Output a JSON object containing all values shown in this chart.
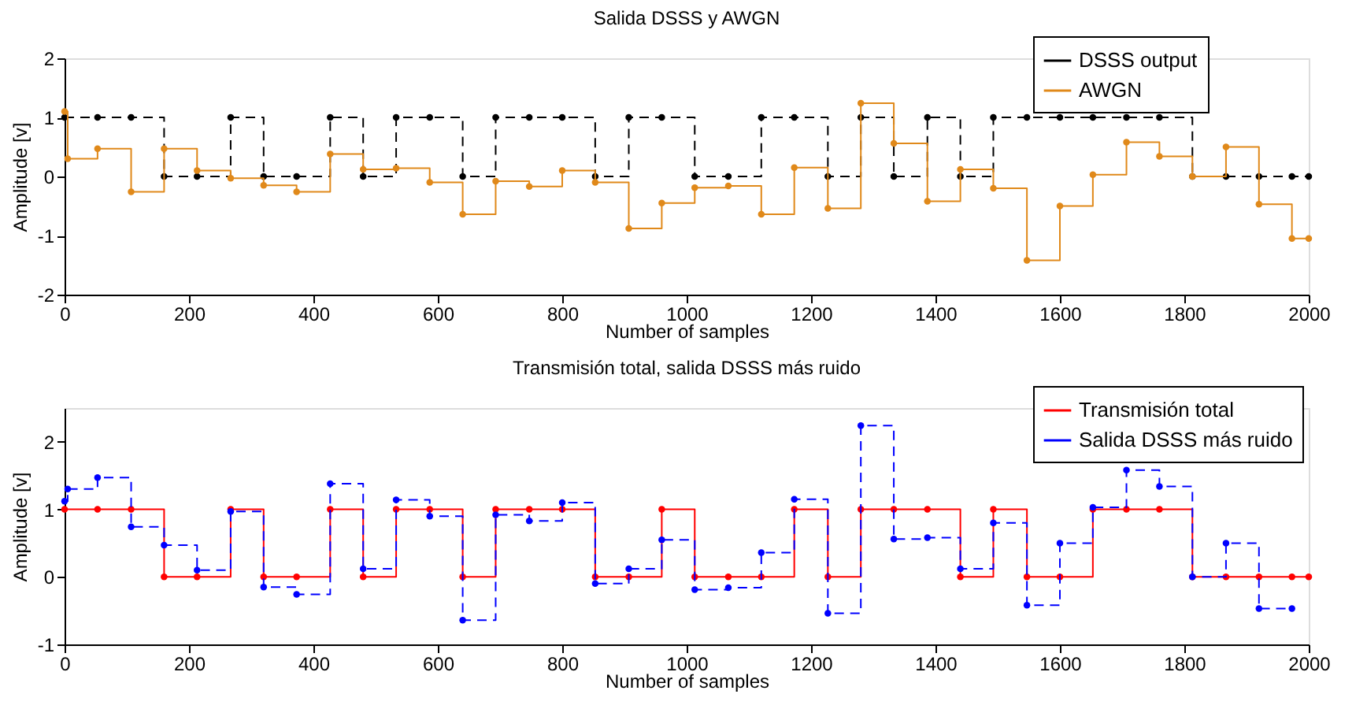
{
  "chart_data": [
    {
      "type": "step",
      "title": "Salida DSSS y AWGN",
      "xlabel": "Number of samples",
      "ylabel": "Amplitude [v]",
      "xlim": [
        0,
        2000
      ],
      "xticks": [
        0,
        200,
        400,
        600,
        800,
        1000,
        1200,
        1400,
        1600,
        1800,
        2000
      ],
      "ylim": [
        -2,
        2
      ],
      "yticks": [
        -2,
        -1,
        0,
        1,
        2
      ],
      "grid": false,
      "legend": "top right",
      "marker": "circle",
      "series": [
        {
          "name": "DSSS output",
          "color": "#000000",
          "line_style": "dashed",
          "x": [
            0,
            53,
            107,
            160,
            213,
            267,
            320,
            373,
            427,
            480,
            533,
            587,
            640,
            693,
            747,
            800,
            853,
            907,
            960,
            1013,
            1067,
            1120,
            1173,
            1227,
            1280,
            1333,
            1387,
            1440,
            1493,
            1547,
            1600,
            1653,
            1707,
            1760,
            1813,
            1867,
            1920,
            1973,
            2000
          ],
          "values": [
            1,
            1,
            1,
            0,
            0,
            1,
            0,
            0,
            1,
            0,
            1,
            1,
            0,
            1,
            1,
            1,
            0,
            1,
            1,
            0,
            0,
            1,
            1,
            0,
            1,
            0,
            1,
            0,
            1,
            1,
            1,
            1,
            1,
            1,
            0,
            0,
            0,
            0,
            0
          ]
        },
        {
          "name": "AWGN",
          "color": "#e0891a",
          "line_style": "solid",
          "x": [
            0,
            5,
            53,
            107,
            160,
            213,
            267,
            320,
            373,
            427,
            480,
            533,
            587,
            640,
            693,
            747,
            800,
            853,
            907,
            960,
            1013,
            1067,
            1120,
            1173,
            1227,
            1280,
            1333,
            1387,
            1440,
            1493,
            1547,
            1600,
            1653,
            1707,
            1760,
            1813,
            1867,
            1920,
            1973,
            2000
          ],
          "values": [
            1.1,
            0.3,
            0.47,
            -0.26,
            0.47,
            0.1,
            -0.03,
            -0.15,
            -0.26,
            0.38,
            0.12,
            0.14,
            -0.1,
            -0.64,
            -0.08,
            -0.17,
            0.1,
            -0.1,
            -0.88,
            -0.45,
            -0.19,
            -0.16,
            -0.64,
            0.15,
            -0.54,
            1.24,
            0.56,
            -0.42,
            0.12,
            -0.2,
            -1.42,
            -0.5,
            0.03,
            0.58,
            0.34,
            0.0,
            0.5,
            -0.47,
            -1.05,
            -1.05
          ]
        }
      ]
    },
    {
      "type": "step",
      "title": "Transmisión total, salida DSSS más ruido",
      "xlabel": "Number of samples",
      "ylabel": "Amplitude [v]",
      "xlim": [
        0,
        2000
      ],
      "xticks": [
        0,
        200,
        400,
        600,
        800,
        1000,
        1200,
        1400,
        1600,
        1800,
        2000
      ],
      "ylim": [
        -1,
        2.5
      ],
      "yticks": [
        -1,
        0,
        1,
        2
      ],
      "grid": false,
      "legend": "top right",
      "marker": "circle",
      "series": [
        {
          "name": "Transmisión total",
          "color": "#ff0000",
          "line_style": "solid",
          "x": [
            0,
            53,
            107,
            160,
            213,
            267,
            320,
            373,
            427,
            480,
            533,
            587,
            640,
            693,
            747,
            800,
            853,
            907,
            960,
            1013,
            1067,
            1120,
            1173,
            1227,
            1280,
            1333,
            1387,
            1440,
            1493,
            1547,
            1600,
            1653,
            1707,
            1760,
            1813,
            1867,
            1920,
            1973,
            2000
          ],
          "values": [
            1,
            1,
            1,
            0,
            0,
            1,
            0,
            0,
            1,
            0,
            1,
            1,
            0,
            1,
            1,
            1,
            0,
            0,
            1,
            0,
            0,
            0,
            1,
            0,
            1,
            1,
            1,
            0,
            1,
            0,
            0,
            1,
            1,
            1,
            0,
            0,
            0,
            0,
            0
          ]
        },
        {
          "name": "Salida DSSS más ruido",
          "color": "#0000ff",
          "line_style": "dashed",
          "x": [
            0,
            5,
            53,
            107,
            160,
            213,
            267,
            320,
            373,
            427,
            480,
            533,
            587,
            640,
            693,
            747,
            800,
            853,
            907,
            960,
            1013,
            1067,
            1120,
            1173,
            1227,
            1280,
            1333,
            1387,
            1440,
            1493,
            1547,
            1600,
            1653,
            1707,
            1760,
            1813,
            1867,
            1920,
            1973
          ],
          "values": [
            1.12,
            1.3,
            1.47,
            0.74,
            0.47,
            0.1,
            0.97,
            -0.15,
            -0.26,
            1.38,
            0.12,
            1.14,
            0.9,
            -0.64,
            0.92,
            0.83,
            1.1,
            -0.1,
            0.12,
            0.55,
            -0.19,
            -0.16,
            0.36,
            1.15,
            -0.54,
            2.24,
            0.56,
            0.58,
            0.12,
            0.8,
            -0.42,
            0.5,
            1.03,
            1.58,
            1.34,
            0.0,
            0.5,
            -0.47,
            -0.47
          ]
        }
      ]
    }
  ]
}
